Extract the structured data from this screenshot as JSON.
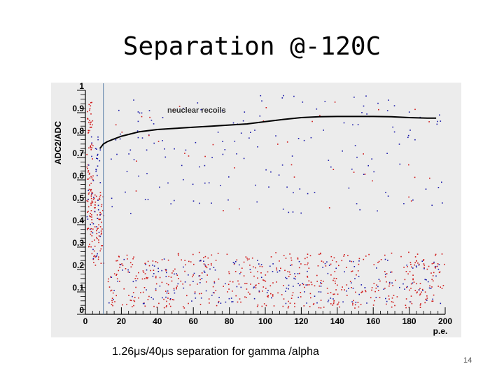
{
  "slide": {
    "title": "Separation @-120C",
    "caption": "1.26μs/40μs separation for gamma /alpha",
    "page_number": "14"
  },
  "chart_data": {
    "type": "scatter",
    "title": "",
    "xlabel": "p.e.",
    "ylabel": "ADC2/ADC",
    "xlim": [
      0,
      200
    ],
    "ylim": [
      0,
      1
    ],
    "x_ticks": [
      "0",
      "20",
      "40",
      "60",
      "80",
      "100",
      "120",
      "140",
      "160",
      "180",
      "200"
    ],
    "y_ticks": [
      "0",
      "0.1",
      "0.2",
      "0.3",
      "0.4",
      "0.5",
      "0.6",
      "0.7",
      "0.8",
      "0.9",
      "1"
    ],
    "threshold_line_x": 10,
    "annotation": "neuclear recoils",
    "colors": {
      "background": "#ececec",
      "gamma_points": "#d01818",
      "recoil_points": "#1a1aa8",
      "curve": "#000000",
      "threshold": "#5a7fa8"
    },
    "series": [
      {
        "name": "neuclear recoils",
        "type": "line",
        "x": [
          8,
          10,
          12,
          15,
          20,
          25,
          30,
          40,
          50,
          60,
          70,
          80,
          90,
          100,
          110,
          120,
          130,
          140,
          150,
          160,
          170,
          180,
          190,
          195
        ],
        "y": [
          0.74,
          0.76,
          0.77,
          0.78,
          0.795,
          0.805,
          0.815,
          0.825,
          0.83,
          0.835,
          0.84,
          0.845,
          0.85,
          0.86,
          0.87,
          0.878,
          0.882,
          0.883,
          0.883,
          0.883,
          0.882,
          0.878,
          0.876,
          0.876
        ]
      },
      {
        "name": "",
        "type": "scatter",
        "clusters": [
          {
            "color": "gamma",
            "x": [
              0.5,
              4
            ],
            "y": [
              0.3,
              0.95
            ],
            "n": 90
          },
          {
            "color": "gamma",
            "x": [
              3,
              10
            ],
            "y": [
              0.22,
              0.55
            ],
            "n": 70
          },
          {
            "color": "gamma",
            "x": [
              12,
              200
            ],
            "y": [
              0.03,
              0.28
            ],
            "n": 520
          },
          {
            "color": "recoil",
            "x": [
              0.5,
              8
            ],
            "y": [
              0.25,
              0.85
            ],
            "n": 45
          },
          {
            "color": "recoil",
            "x": [
              12,
              200
            ],
            "y": [
              0.05,
              0.25
            ],
            "n": 200
          },
          {
            "color": "recoil",
            "x": [
              14,
              200
            ],
            "y": [
              0.45,
              0.98
            ],
            "n": 160
          },
          {
            "color": "gamma",
            "x": [
              14,
              200
            ],
            "y": [
              0.45,
              0.95
            ],
            "n": 40
          }
        ]
      }
    ]
  }
}
